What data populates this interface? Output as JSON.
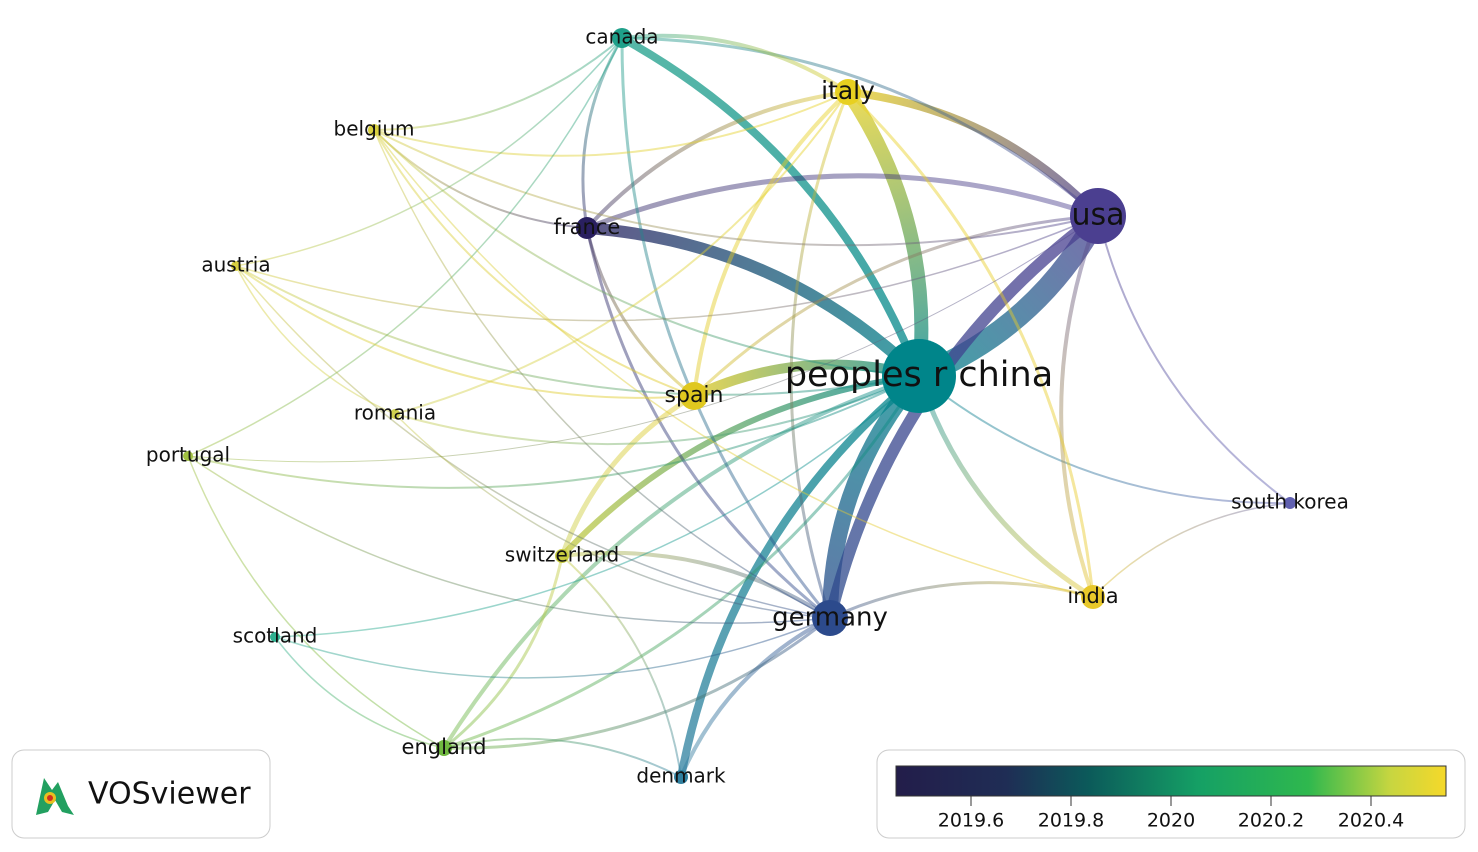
{
  "nodes": [
    {
      "label": "canada",
      "color": "#1fa08a"
    },
    {
      "label": "italy",
      "color": "#e8d020"
    },
    {
      "label": "belgium",
      "color": "#d8d040"
    },
    {
      "label": "usa",
      "color": "#4b3f90"
    },
    {
      "label": "france",
      "color": "#2a2060"
    },
    {
      "label": "austria",
      "color": "#d8d040"
    },
    {
      "label": "peoples r china",
      "color": "#00858a"
    },
    {
      "label": "spain",
      "color": "#e0c81f"
    },
    {
      "label": "romania",
      "color": "#d0d050"
    },
    {
      "label": "portugal",
      "color": "#a0c040"
    },
    {
      "label": "south korea",
      "color": "#6060b0"
    },
    {
      "label": "switzerland",
      "color": "#c8cc40"
    },
    {
      "label": "india",
      "color": "#e8c82a"
    },
    {
      "label": "germany",
      "color": "#2c4a8c"
    },
    {
      "label": "scotland",
      "color": "#30b090"
    },
    {
      "label": "england",
      "color": "#70b840"
    },
    {
      "label": "denmark",
      "color": "#3080a0"
    }
  ],
  "logo": {
    "text": "VOSviewer"
  },
  "color_scale": {
    "range": [
      2019.45,
      2020.55
    ],
    "ticks": [
      2019.6,
      2019.8,
      2020.0,
      {
        "value": 2020.2,
        "label": "2020.2"
      },
      {
        "value": 2020.4,
        "label": "2020.4"
      }
    ]
  }
}
